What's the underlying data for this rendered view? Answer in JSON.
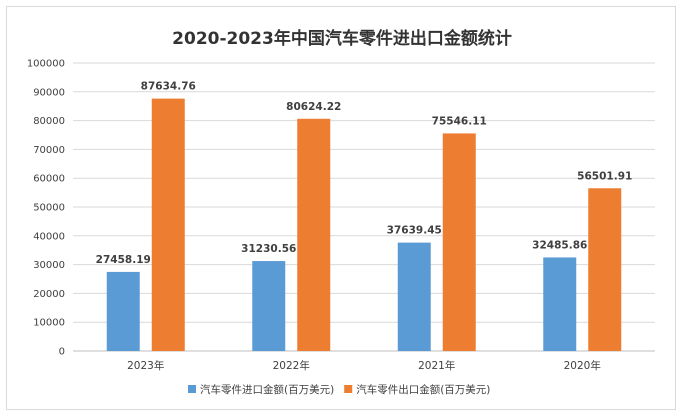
{
  "chart_data": {
    "type": "bar",
    "title": "2020-2023年中国汽车零件进出口金额统计",
    "categories": [
      "2023年",
      "2022年",
      "2021年",
      "2020年"
    ],
    "series": [
      {
        "name": "汽车零件进口金额(百万美元)",
        "color": "#5b9bd5",
        "values": [
          27458.19,
          31230.56,
          37639.45,
          32485.86
        ]
      },
      {
        "name": "汽车零件出口金额(百万美元)",
        "color": "#ed7d31",
        "values": [
          87634.76,
          80624.22,
          75546.11,
          56501.91
        ]
      }
    ],
    "yticks": [
      0,
      10000,
      20000,
      30000,
      40000,
      50000,
      60000,
      70000,
      80000,
      90000,
      100000
    ],
    "ylim": [
      0,
      100000
    ],
    "grid": true,
    "legend_position": "bottom",
    "value_labels": [
      [
        "27458.19",
        "31230.56",
        "37639.45",
        "32485.86"
      ],
      [
        "87634.76",
        "80624.22",
        "75546.11",
        "56501.91"
      ]
    ]
  }
}
